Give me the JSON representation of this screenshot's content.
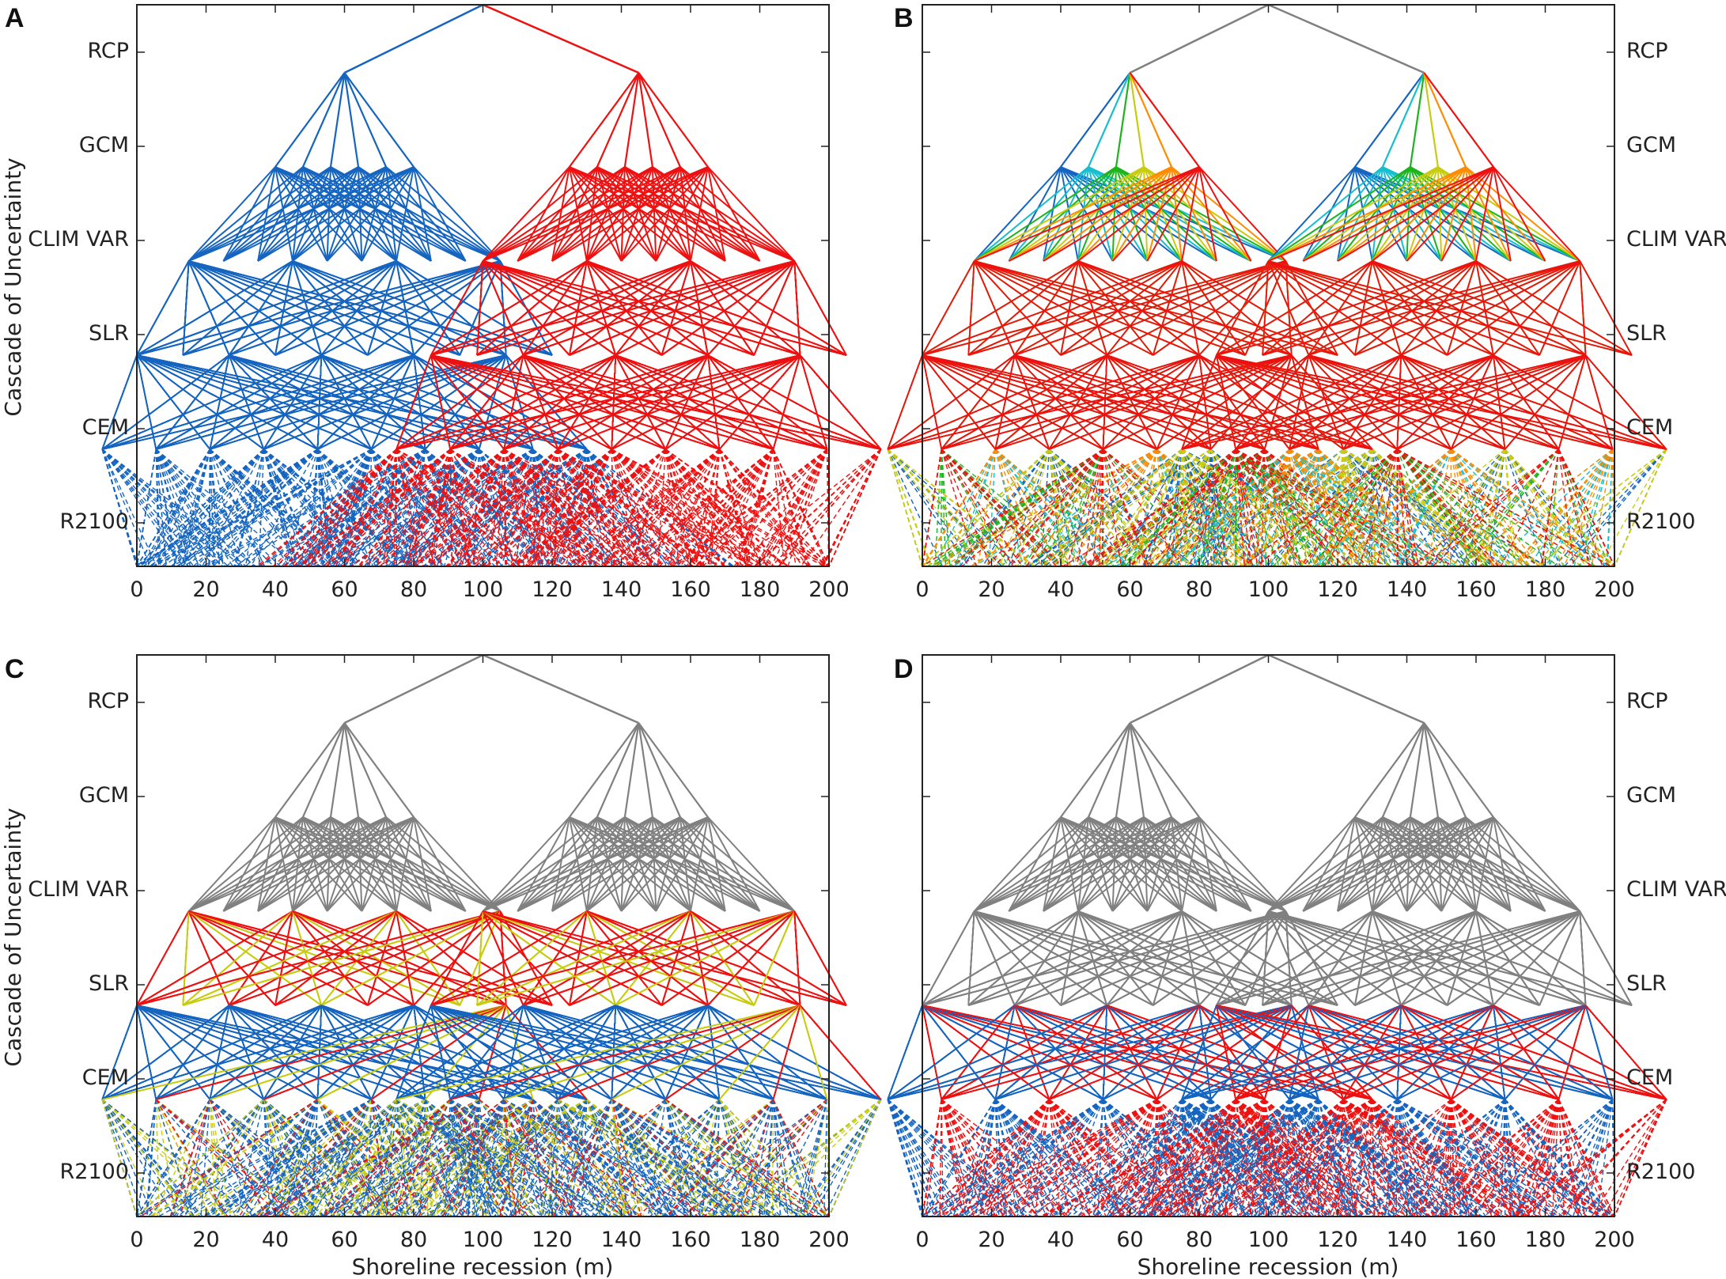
{
  "figure": {
    "y_axis_title": "Cascade of Uncertainty",
    "x_axis_title": "Shoreline recession (m)"
  },
  "colors": {
    "blue": "#1565C0",
    "red": "#EE1111",
    "gray": "#808080",
    "cyan": "#17BECF",
    "green": "#1DB31D",
    "yellow": "#C8CC10",
    "orange": "#FF8C00"
  },
  "chart_data": [
    {
      "type": "tree",
      "panel": "A",
      "title": "A",
      "xlabel": "",
      "ylabel": "Cascade of Uncertainty",
      "xlim": [
        0,
        200
      ],
      "x_ticks": [
        "0",
        "20",
        "40",
        "60",
        "80",
        "100",
        "120",
        "140",
        "160",
        "180",
        "200"
      ],
      "levels": [
        "RCP",
        "GCM",
        "CLIM VAR",
        "SLR",
        "CEM",
        "R2100"
      ],
      "level_label_side": "left",
      "branching": {
        "RCP": 2,
        "GCM": 6,
        "CLIM VAR": 10,
        "SLR": 10,
        "CEM": 10
      },
      "node_x": {
        "root": 100,
        "RCP": [
          60,
          145
        ],
        "GCM_spread": 20,
        "CLIM_VAR_spread": 45,
        "SLR_spread": 60,
        "CEM_spread": 70
      },
      "coloring": "by RCP",
      "color_map": {
        "RCP 1": "blue",
        "RCP 2": "red"
      }
    },
    {
      "type": "tree",
      "panel": "B",
      "title": "B",
      "xlabel": "",
      "ylabel": "",
      "xlim": [
        0,
        200
      ],
      "x_ticks": [
        "0",
        "20",
        "40",
        "60",
        "80",
        "100",
        "120",
        "140",
        "160",
        "180",
        "200"
      ],
      "levels": [
        "RCP",
        "GCM",
        "CLIM VAR",
        "SLR",
        "CEM",
        "R2100"
      ],
      "level_label_side": "right",
      "branching": {
        "RCP": 2,
        "GCM": 6,
        "CLIM VAR": 10,
        "SLR": 10,
        "CEM": 10
      },
      "node_x": {
        "root": 100,
        "RCP": [
          60,
          145
        ],
        "GCM_spread": 20,
        "CLIM_VAR_spread": 45,
        "SLR_spread": 60,
        "CEM_spread": 70
      },
      "coloring": "by GCM",
      "color_map": {
        "GCM 1": "blue",
        "GCM 2": "cyan",
        "GCM 3": "green",
        "GCM 4": "yellow",
        "GCM 5": "orange",
        "GCM 6": "red"
      }
    },
    {
      "type": "tree",
      "panel": "C",
      "title": "C",
      "xlabel": "Shoreline recession (m)",
      "ylabel": "Cascade of Uncertainty",
      "xlim": [
        0,
        200
      ],
      "x_ticks": [
        "0",
        "20",
        "40",
        "60",
        "80",
        "100",
        "120",
        "140",
        "160",
        "180",
        "200"
      ],
      "levels": [
        "RCP",
        "GCM",
        "CLIM VAR",
        "SLR",
        "CEM",
        "R2100"
      ],
      "level_label_side": "left",
      "branching": {
        "RCP": 2,
        "GCM": 6,
        "CLIM VAR": 10,
        "SLR": 10,
        "CEM": 10
      },
      "node_x": {
        "root": 100,
        "RCP": [
          60,
          145
        ],
        "GCM_spread": 20,
        "CLIM_VAR_spread": 45,
        "SLR_spread": 60,
        "CEM_spread": 70
      },
      "coloring": "by SLR",
      "color_map": {
        "SLR low": "blue",
        "SLR mid": "yellow",
        "SLR high": "red"
      }
    },
    {
      "type": "tree",
      "panel": "D",
      "title": "D",
      "xlabel": "Shoreline recession (m)",
      "ylabel": "",
      "xlim": [
        0,
        200
      ],
      "x_ticks": [
        "0",
        "20",
        "40",
        "60",
        "80",
        "100",
        "120",
        "140",
        "160",
        "180",
        "200"
      ],
      "levels": [
        "RCP",
        "GCM",
        "CLIM VAR",
        "SLR",
        "CEM",
        "R2100"
      ],
      "level_label_side": "right",
      "branching": {
        "RCP": 2,
        "GCM": 6,
        "CLIM VAR": 10,
        "SLR": 10,
        "CEM": 10
      },
      "node_x": {
        "root": 100,
        "RCP": [
          60,
          145
        ],
        "GCM_spread": 20,
        "CLIM_VAR_spread": 45,
        "SLR_spread": 60,
        "CEM_spread": 70
      },
      "coloring": "by CEM",
      "color_map": {
        "CEM 1": "blue",
        "CEM 2": "red"
      }
    }
  ]
}
